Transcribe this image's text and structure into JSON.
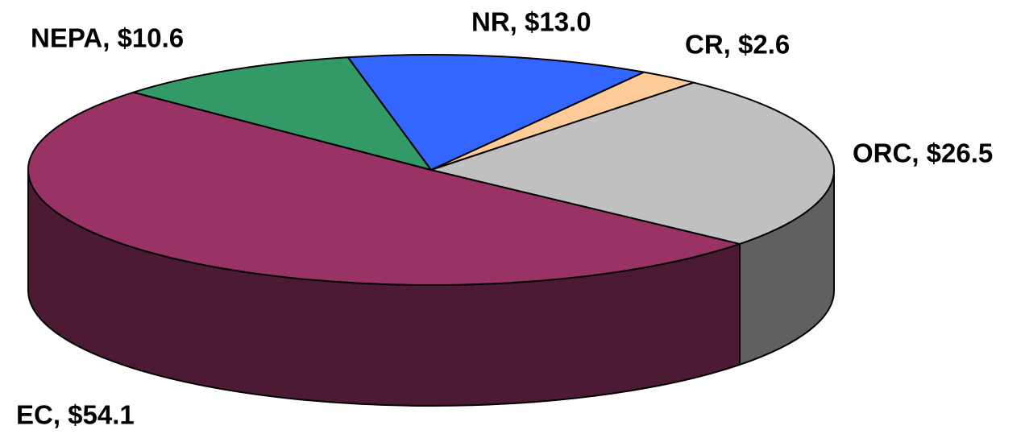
{
  "chart_data": {
    "type": "pie3d",
    "values": [
      54.1,
      10.6,
      13.0,
      2.6,
      26.5
    ],
    "value_labels": [
      "EC, $54.1",
      "NEPA, $10.6",
      "NR, $13.0",
      "CR, $2.6",
      "ORC, $26.5"
    ],
    "colors": [
      "#993366",
      "#339966",
      "#3366ff",
      "#ffcc99",
      "#c0c0c0"
    ]
  }
}
